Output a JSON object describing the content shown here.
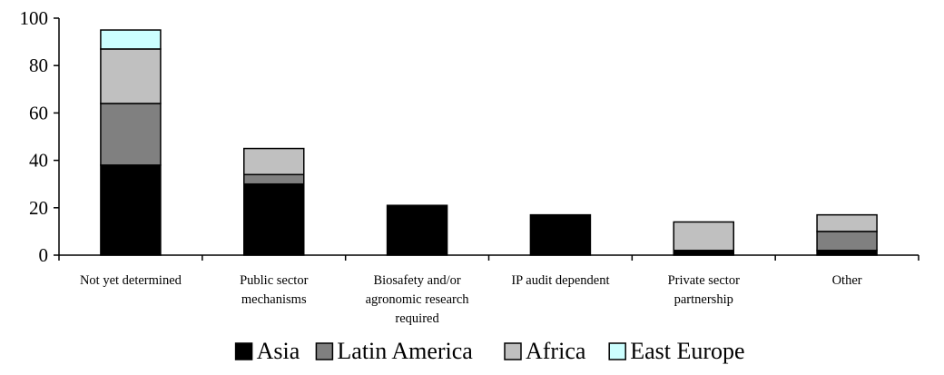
{
  "chart_data": {
    "type": "bar",
    "stacked": true,
    "categories": [
      [
        "Not yet determined"
      ],
      [
        "Public sector",
        "mechanisms"
      ],
      [
        "Biosafety and/or",
        "agronomic research",
        "required"
      ],
      [
        "IP audit dependent"
      ],
      [
        "Private sector",
        "partnership"
      ],
      [
        "Other"
      ]
    ],
    "series": [
      {
        "name": "Asia",
        "color": "#000000",
        "values": [
          38,
          30,
          21,
          17,
          2,
          2
        ]
      },
      {
        "name": "Latin America",
        "color": "#808080",
        "values": [
          26,
          4,
          0,
          0,
          0,
          8
        ]
      },
      {
        "name": "Africa",
        "color": "#c0c0c0",
        "values": [
          23,
          11,
          0,
          0,
          12,
          7
        ]
      },
      {
        "name": "East Europe",
        "color": "#ccffff",
        "values": [
          8,
          0,
          0,
          0,
          0,
          0
        ]
      }
    ],
    "ylim": [
      0,
      100
    ],
    "yticks": [
      0,
      20,
      40,
      60,
      80,
      100
    ],
    "grid": false,
    "legend_position": "bottom"
  }
}
